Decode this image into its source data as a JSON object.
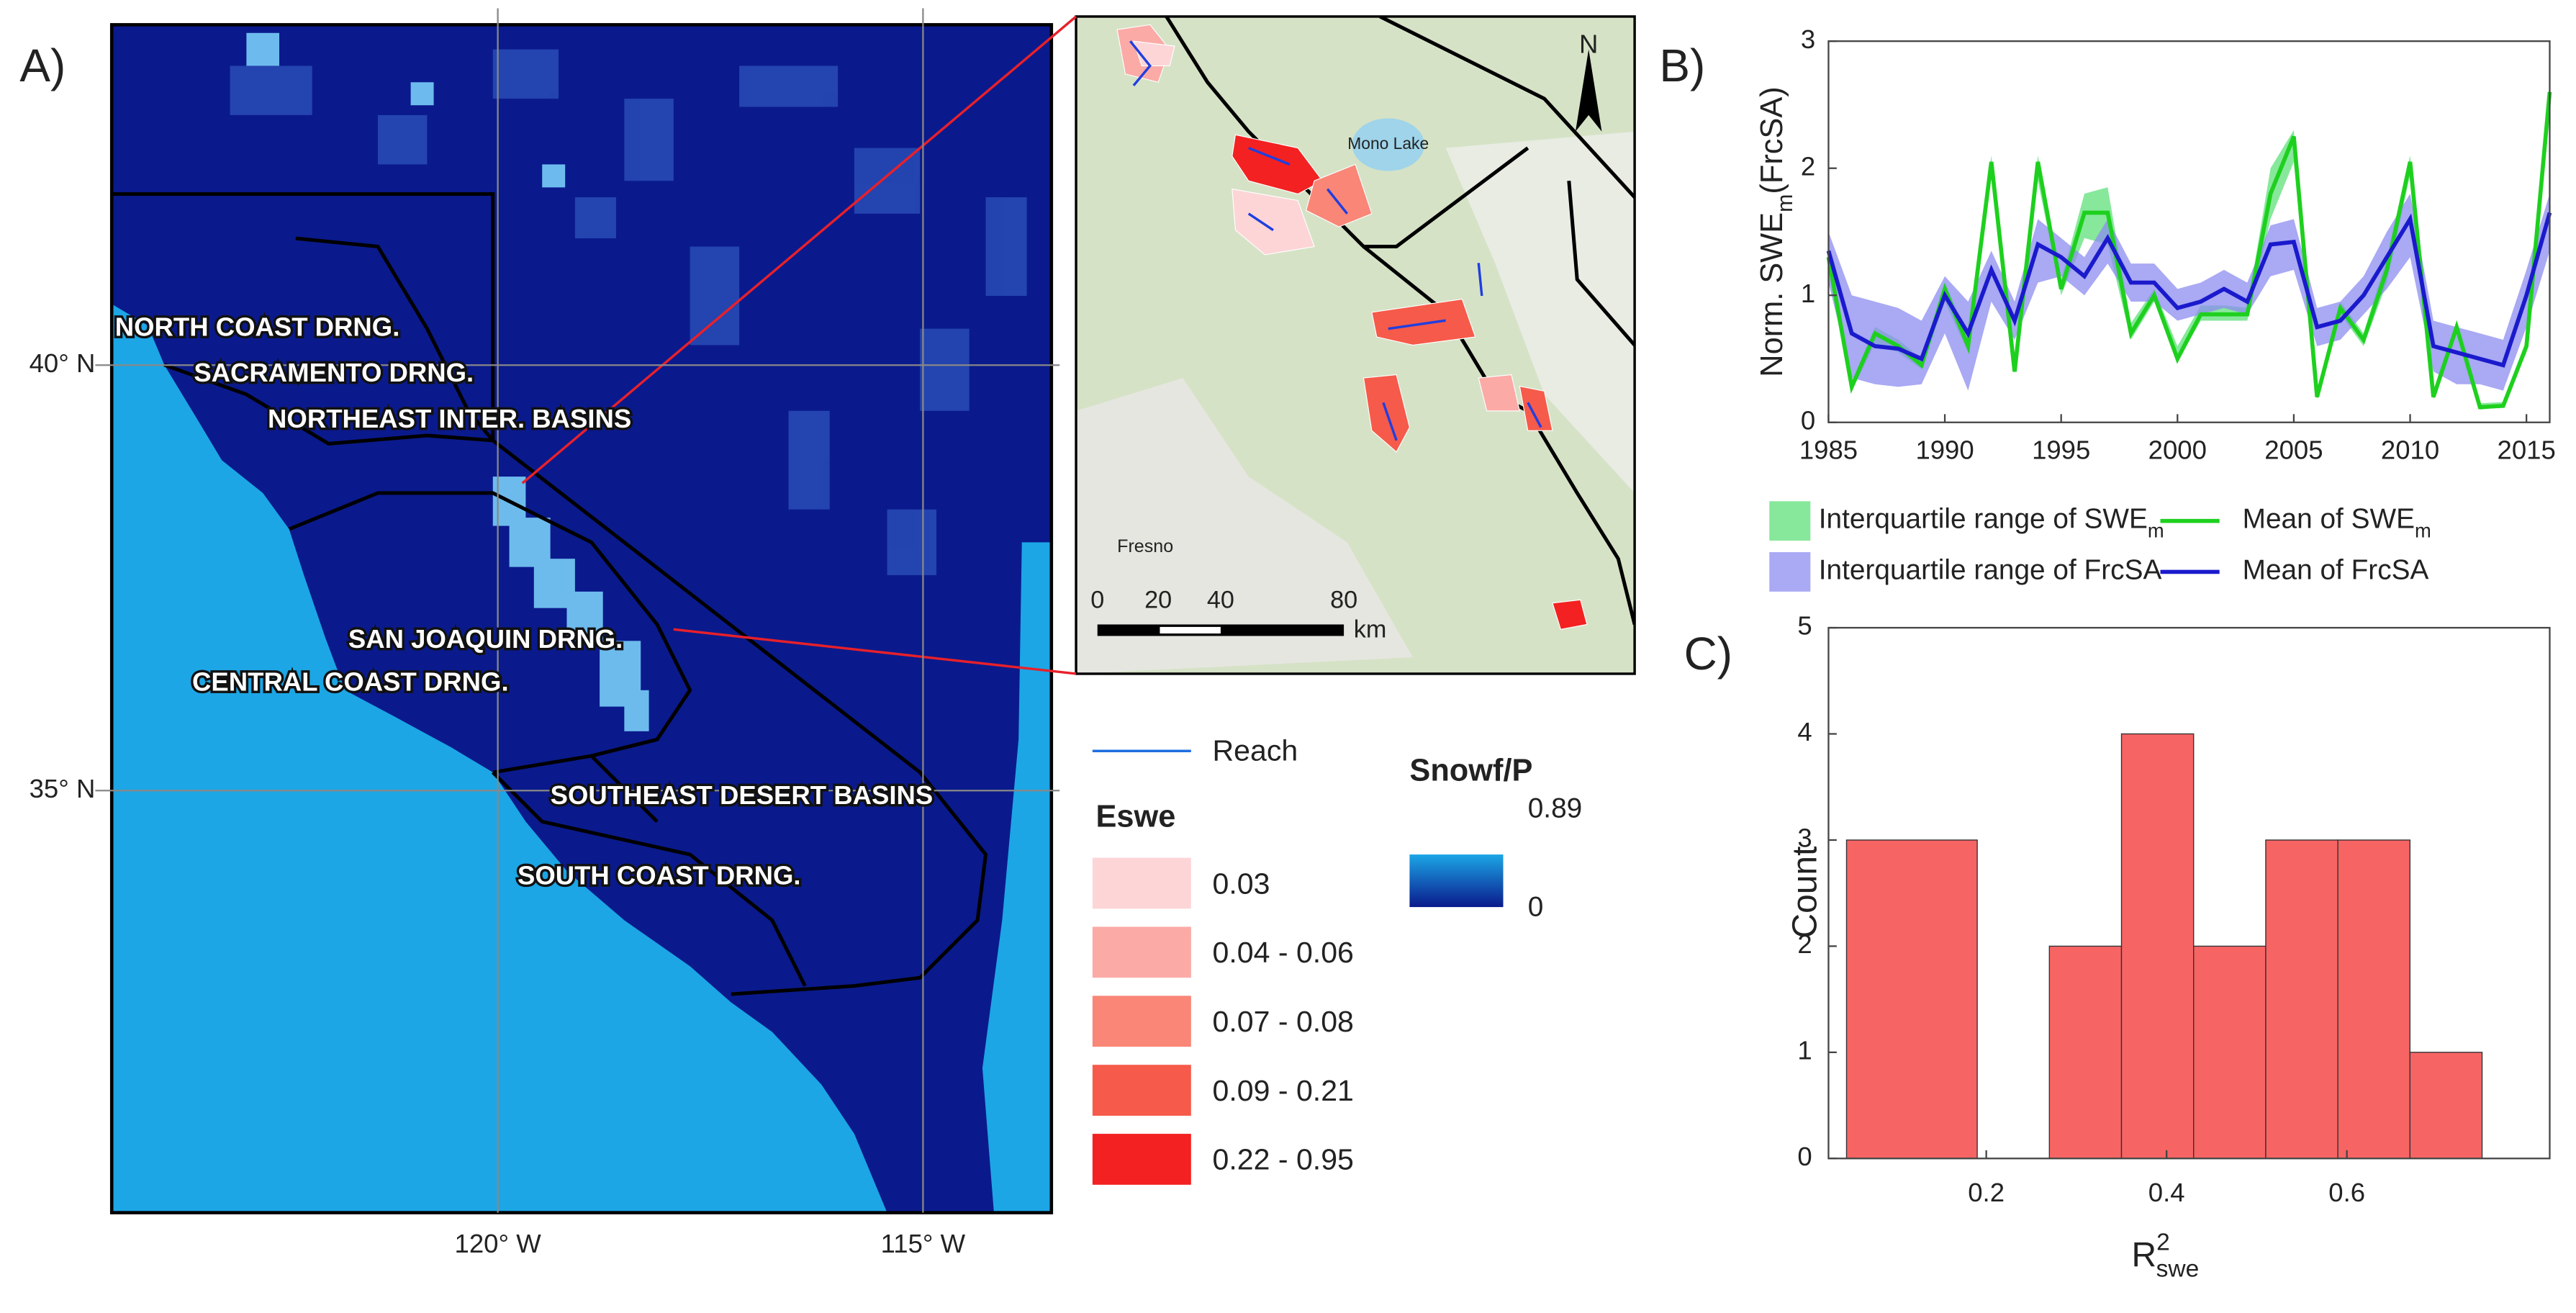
{
  "chart_data": [
    {
      "type": "map",
      "panel_label": "A)",
      "xlim": [
        -124.54,
        -113.49
      ],
      "xticks": [
        {
          "value": -120,
          "label": "120° W"
        },
        {
          "value": -115,
          "label": "115° W"
        }
      ],
      "ylim": [
        30.04,
        44.0
      ],
      "yticks": [
        {
          "value": 40,
          "label": "40° N"
        },
        {
          "value": 35,
          "label": "35° N"
        }
      ],
      "grid": true,
      "regions": [
        "NORTH COAST DRNG.",
        "SACRAMENTO DRNG.",
        "NORTHEAST INTER. BASINS",
        "SAN JOAQUIN DRNG.",
        "CENTRAL COAST DRNG.",
        "SOUTHEAST DESERT BASINS",
        "SOUTH COAST DRNG."
      ],
      "inset": {
        "labels": [
          "Mono Lake",
          "Fresno",
          "N"
        ],
        "scale_labels": [
          "0",
          "20",
          "40",
          "80"
        ],
        "scale_unit": "km"
      },
      "reach_label": "Reach",
      "reach_color": "#1f6fe0",
      "eswe_legend": {
        "title": "Eswe",
        "classes": [
          {
            "label": "0.03",
            "color": "#fdd5d7"
          },
          {
            "label": "0.04 - 0.06",
            "color": "#fbaaa6"
          },
          {
            "label": "0.07 - 0.08",
            "color": "#f98677"
          },
          {
            "label": "0.09 - 0.21",
            "color": "#f65a4a"
          },
          {
            "label": "0.22 - 0.95",
            "color": "#f32121"
          }
        ]
      },
      "colorbar": {
        "title": "Snowf/P",
        "min": 0,
        "max": 0.89,
        "colors": [
          "#0a1a8c",
          "#1ca6e6"
        ]
      }
    },
    {
      "type": "line",
      "panel_label": "B)",
      "ylabel": {
        "text": "Norm. SWE",
        "sub": "m",
        "suffix": "(FrcSA)"
      },
      "x": [
        1985,
        1986,
        1987,
        1988,
        1989,
        1990,
        1991,
        1992,
        1993,
        1994,
        1995,
        1996,
        1997,
        1998,
        1999,
        2000,
        2001,
        2002,
        2003,
        2004,
        2005,
        2006,
        2007,
        2008,
        2009,
        2010,
        2011,
        2012,
        2013,
        2014,
        2015,
        2016
      ],
      "xlim": [
        1985,
        2016
      ],
      "xticks": [
        1985,
        1990,
        1995,
        2000,
        2005,
        2010,
        2015
      ],
      "ylim": [
        0,
        3
      ],
      "yticks": [
        0,
        1,
        2,
        3
      ],
      "series": [
        {
          "name": "Interquartile range of SWE",
          "name_sub": "m",
          "kind": "band",
          "color": "#5fe07a",
          "lower": [
            1.2,
            0.25,
            0.62,
            0.55,
            0.42,
            0.95,
            0.55,
            1.95,
            0.38,
            1.9,
            1.0,
            1.45,
            1.4,
            0.65,
            0.95,
            0.48,
            0.8,
            0.8,
            0.8,
            1.6,
            2.05,
            0.18,
            0.85,
            0.6,
            1.1,
            1.95,
            0.18,
            0.7,
            0.1,
            0.12,
            0.55,
            2.45
          ],
          "upper": [
            1.4,
            0.32,
            0.75,
            0.65,
            0.5,
            1.1,
            0.68,
            2.1,
            0.45,
            2.1,
            1.12,
            1.8,
            1.85,
            0.78,
            1.05,
            0.6,
            0.92,
            0.92,
            0.9,
            2.0,
            2.3,
            0.25,
            0.95,
            0.7,
            1.3,
            2.1,
            0.24,
            0.8,
            0.15,
            0.16,
            0.65,
            2.6
          ]
        },
        {
          "name": "Mean of SWE",
          "name_sub": "m",
          "kind": "line",
          "color": "#1ed01e",
          "values": [
            1.3,
            0.28,
            0.7,
            0.6,
            0.45,
            1.05,
            0.6,
            2.05,
            0.4,
            2.05,
            1.05,
            1.65,
            1.65,
            0.7,
            1.0,
            0.5,
            0.85,
            0.85,
            0.85,
            1.8,
            2.25,
            0.2,
            0.9,
            0.65,
            1.2,
            2.05,
            0.2,
            0.75,
            0.12,
            0.13,
            0.6,
            2.6
          ]
        },
        {
          "name": "Interquartile range of FrcSA",
          "kind": "band",
          "color": "#8c8cf0",
          "lower": [
            1.1,
            0.35,
            0.3,
            0.28,
            0.3,
            0.7,
            0.25,
            0.95,
            0.65,
            1.1,
            1.15,
            1.0,
            1.25,
            0.95,
            0.95,
            0.8,
            0.85,
            0.9,
            0.85,
            1.15,
            1.2,
            0.6,
            0.65,
            0.85,
            1.05,
            1.3,
            0.4,
            0.3,
            0.3,
            0.25,
            0.75,
            1.35
          ],
          "upper": [
            1.5,
            1.0,
            0.95,
            0.9,
            0.8,
            1.15,
            0.95,
            1.35,
            0.95,
            1.6,
            1.45,
            1.3,
            1.6,
            1.25,
            1.25,
            1.05,
            1.1,
            1.2,
            1.1,
            1.55,
            1.6,
            0.9,
            0.95,
            1.15,
            1.5,
            1.8,
            0.8,
            0.75,
            0.7,
            0.65,
            1.2,
            1.8
          ]
        },
        {
          "name": "Mean of FrcSA",
          "kind": "line",
          "color": "#1a1acc",
          "values": [
            1.35,
            0.7,
            0.6,
            0.58,
            0.5,
            1.0,
            0.7,
            1.2,
            0.8,
            1.4,
            1.3,
            1.15,
            1.45,
            1.1,
            1.1,
            0.9,
            0.95,
            1.05,
            0.95,
            1.4,
            1.42,
            0.75,
            0.8,
            1.0,
            1.3,
            1.6,
            0.6,
            0.55,
            0.5,
            0.45,
            1.0,
            1.65
          ]
        }
      ]
    },
    {
      "type": "histogram",
      "panel_label": "C)",
      "ylabel": "Count",
      "xlabel": {
        "text": "R",
        "sup": "2",
        "sub": "swe"
      },
      "bins": [
        0.045,
        0.19,
        0.27,
        0.35,
        0.43,
        0.51,
        0.59,
        0.67,
        0.75
      ],
      "values": [
        3,
        0,
        2,
        4,
        2,
        3,
        3,
        1
      ],
      "color": "#f76464",
      "xlim": [
        0.025,
        0.825
      ],
      "xticks": [
        0.2,
        0.4,
        0.6
      ],
      "ylim": [
        0,
        5
      ],
      "yticks": [
        0,
        1,
        2,
        3,
        4,
        5
      ]
    }
  ]
}
